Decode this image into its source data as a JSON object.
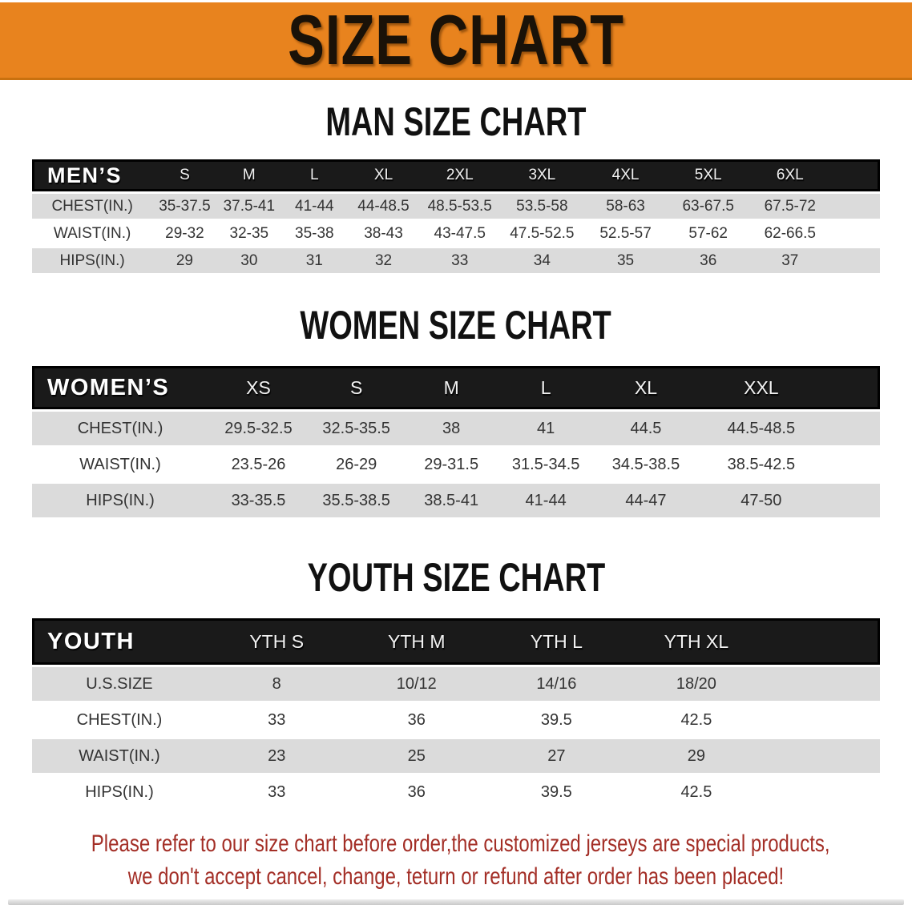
{
  "banner": {
    "title": "SIZE CHART"
  },
  "colors": {
    "banner-bg": "#E8831E",
    "header-bar-bg": "#1A1A1A",
    "row-gray": "#DBDBDB",
    "table-text": "#333333",
    "note-red": "#A32E26",
    "heading-color": "#111111"
  },
  "sections": {
    "men": {
      "heading": "MAN SIZE CHART"
    },
    "women": {
      "heading": "WOMEN SIZE CHART"
    },
    "youth": {
      "heading": "YOUTH SIZE CHART"
    }
  },
  "tables": {
    "men": {
      "header_label": "MEN’S",
      "columns": [
        "S",
        "M",
        "L",
        "XL",
        "2XL",
        "3XL",
        "4XL",
        "5XL",
        "6XL"
      ],
      "rows": [
        {
          "label": "CHEST(IN.)",
          "values": [
            "35-37.5",
            "37.5-41",
            "41-44",
            "44-48.5",
            "48.5-53.5",
            "53.5-58",
            "58-63",
            "63-67.5",
            "67.5-72"
          ]
        },
        {
          "label": "WAIST(IN.)",
          "values": [
            "29-32",
            "32-35",
            "35-38",
            "38-43",
            "43-47.5",
            "47.5-52.5",
            "52.5-57",
            "57-62",
            "62-66.5"
          ]
        },
        {
          "label": "HIPS(IN.)",
          "values": [
            "29",
            "30",
            "31",
            "32",
            "33",
            "34",
            "35",
            "36",
            "37"
          ]
        }
      ]
    },
    "women": {
      "header_label": "WOMEN’S",
      "columns": [
        "XS",
        "S",
        "M",
        "L",
        "XL",
        "XXL"
      ],
      "rows": [
        {
          "label": "CHEST(IN.)",
          "values": [
            "29.5-32.5",
            "32.5-35.5",
            "38",
            "41",
            "44.5",
            "44.5-48.5"
          ]
        },
        {
          "label": "WAIST(IN.)",
          "values": [
            "23.5-26",
            "26-29",
            "29-31.5",
            "31.5-34.5",
            "34.5-38.5",
            "38.5-42.5"
          ]
        },
        {
          "label": "HIPS(IN.)",
          "values": [
            "33-35.5",
            "35.5-38.5",
            "38.5-41",
            "41-44",
            "44-47",
            "47-50"
          ]
        }
      ]
    },
    "youth": {
      "header_label": "YOUTH",
      "columns": [
        "YTH S",
        "YTH M",
        "YTH L",
        "YTH XL"
      ],
      "rows": [
        {
          "label": "U.S.SIZE",
          "values": [
            "8",
            "10/12",
            "14/16",
            "18/20"
          ]
        },
        {
          "label": "CHEST(IN.)",
          "values": [
            "33",
            "36",
            "39.5",
            "42.5"
          ]
        },
        {
          "label": "WAIST(IN.)",
          "values": [
            "23",
            "25",
            "27",
            "29"
          ]
        },
        {
          "label": "HIPS(IN.)",
          "values": [
            "33",
            "36",
            "39.5",
            "42.5"
          ]
        }
      ]
    }
  },
  "note": {
    "line1": "Please refer to our size chart before order,the customized jerseys are special products,",
    "line2": "we don't accept cancel, change, teturn or refund after order has been placed!"
  }
}
